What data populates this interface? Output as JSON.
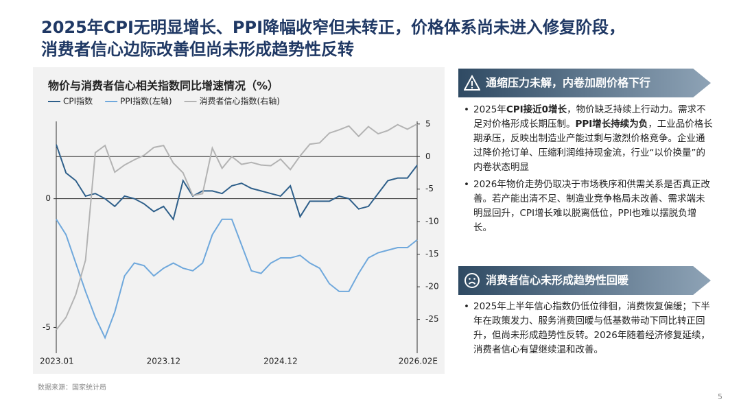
{
  "header": {
    "title_lines": [
      "2025年CPI无明显增长、PPI降幅收窄但未转正，价格体系尚未进入修复阶段，",
      "消费者信心边际改善但尚未形成趋势性反转"
    ]
  },
  "chart_data": {
    "type": "line",
    "title": "物价与消费者信心相关指数同比增速情况（%）",
    "categories": [
      "2023.01",
      null,
      null,
      null,
      null,
      null,
      null,
      null,
      null,
      null,
      null,
      "2023.12",
      null,
      null,
      null,
      null,
      null,
      null,
      null,
      null,
      null,
      null,
      null,
      "2024.12",
      null,
      null,
      null,
      null,
      null,
      null,
      null,
      null,
      null,
      null,
      null,
      null,
      null,
      "2026.02E"
    ],
    "series": [
      {
        "name": "CPI指数",
        "color": "#2e5f8a",
        "values": [
          2.1,
          1.0,
          0.7,
          0.1,
          0.2,
          0,
          -0.3,
          0.1,
          0,
          -0.2,
          -0.5,
          -0.3,
          -0.8,
          0.7,
          0.1,
          0.3,
          0.3,
          0.2,
          0.5,
          0.6,
          0.4,
          0.3,
          0.2,
          0.1,
          0.5,
          -0.7,
          -0.1,
          -0.1,
          -0.1,
          0.1,
          0,
          -0.4,
          -0.3,
          0.2,
          0.7,
          0.8,
          0.8,
          1.3
        ]
      },
      {
        "name": "PPI指数(左轴)",
        "color": "#6fa8dc",
        "values": [
          -0.8,
          -1.4,
          -2.5,
          -3.6,
          -4.6,
          -5.4,
          -4.4,
          -3.0,
          -2.5,
          -2.6,
          -3.0,
          -2.7,
          -2.5,
          -2.7,
          -2.8,
          -2.5,
          -1.4,
          -0.8,
          -0.8,
          -1.8,
          -2.8,
          -2.9,
          -2.5,
          -2.3,
          -2.3,
          -2.2,
          -2.5,
          -2.7,
          -3.3,
          -3.6,
          -3.6,
          -2.9,
          -2.3,
          -2.1,
          -2.0,
          -1.9,
          -1.9,
          -1.6
        ]
      },
      {
        "name": "消费者信心指数(右轴)",
        "color": "#b3b3b3",
        "axis": "y2",
        "values": [
          -26.6,
          -24.7,
          -21.2,
          -15.9,
          0.6,
          1.7,
          -2.4,
          -1.3,
          -0.5,
          0.2,
          1.4,
          1.7,
          -1.0,
          -2.5,
          -6.0,
          -5.7,
          1.3,
          -1.8,
          0,
          -1.2,
          -0.9,
          -1.3,
          -1.4,
          -0.4,
          -2.0,
          0.1,
          1.9,
          2.1,
          3.6,
          4.1,
          4.7,
          3.1,
          4.6,
          3.5,
          4.0,
          4.9,
          4.2,
          5.0
        ]
      }
    ],
    "ylim": [
      -6,
      3
    ],
    "yticks": [
      -5,
      0
    ],
    "y2lim": [
      -30.2,
      5.4
    ],
    "y2ticks": [
      5,
      0,
      -5,
      -10,
      -15,
      -20,
      -25
    ]
  },
  "panels": [
    {
      "heading": "通缩压力未解，内卷加剧价格下行",
      "bullets": [
        [
          {
            "text": "2025年"
          },
          {
            "text": "CPI接近0增长",
            "bold": true
          },
          {
            "text": "，物价缺乏持续上行动力。需求不足对价格形成长期压制。"
          },
          {
            "text": "PPI增长持续为负",
            "bold": true
          },
          {
            "text": "，工业品价格长期承压，反映出制造业产能过剩与激烈价格竞争。企业通过降价抢订单、压缩利润维持现金流，行业“以价换量”的内卷状态明显"
          }
        ],
        [
          {
            "text": "2026年物价走势仍取决于市场秩序和供需关系是否真正改善。若产能出清不足、制造业竞争格局未改善、需求端未明显回升，CPI增长难以脱离低位，PPI也难以摆脱负增长。"
          }
        ]
      ]
    },
    {
      "heading": "消费者信心未形成趋势性回暖",
      "bullets": [
        [
          {
            "text": "2025年上半年信心指数仍低位徘徊，消费恢复偏缓；下半年在政策发力、服务消费回暖与低基数带动下同比转正回升，但尚未形成趋势性反转。2026年随着经济修复延续，消费者信心有望继续温和改善。"
          }
        ]
      ]
    }
  ],
  "footer": {
    "source": "数据来源：国家统计局",
    "page": "5"
  }
}
